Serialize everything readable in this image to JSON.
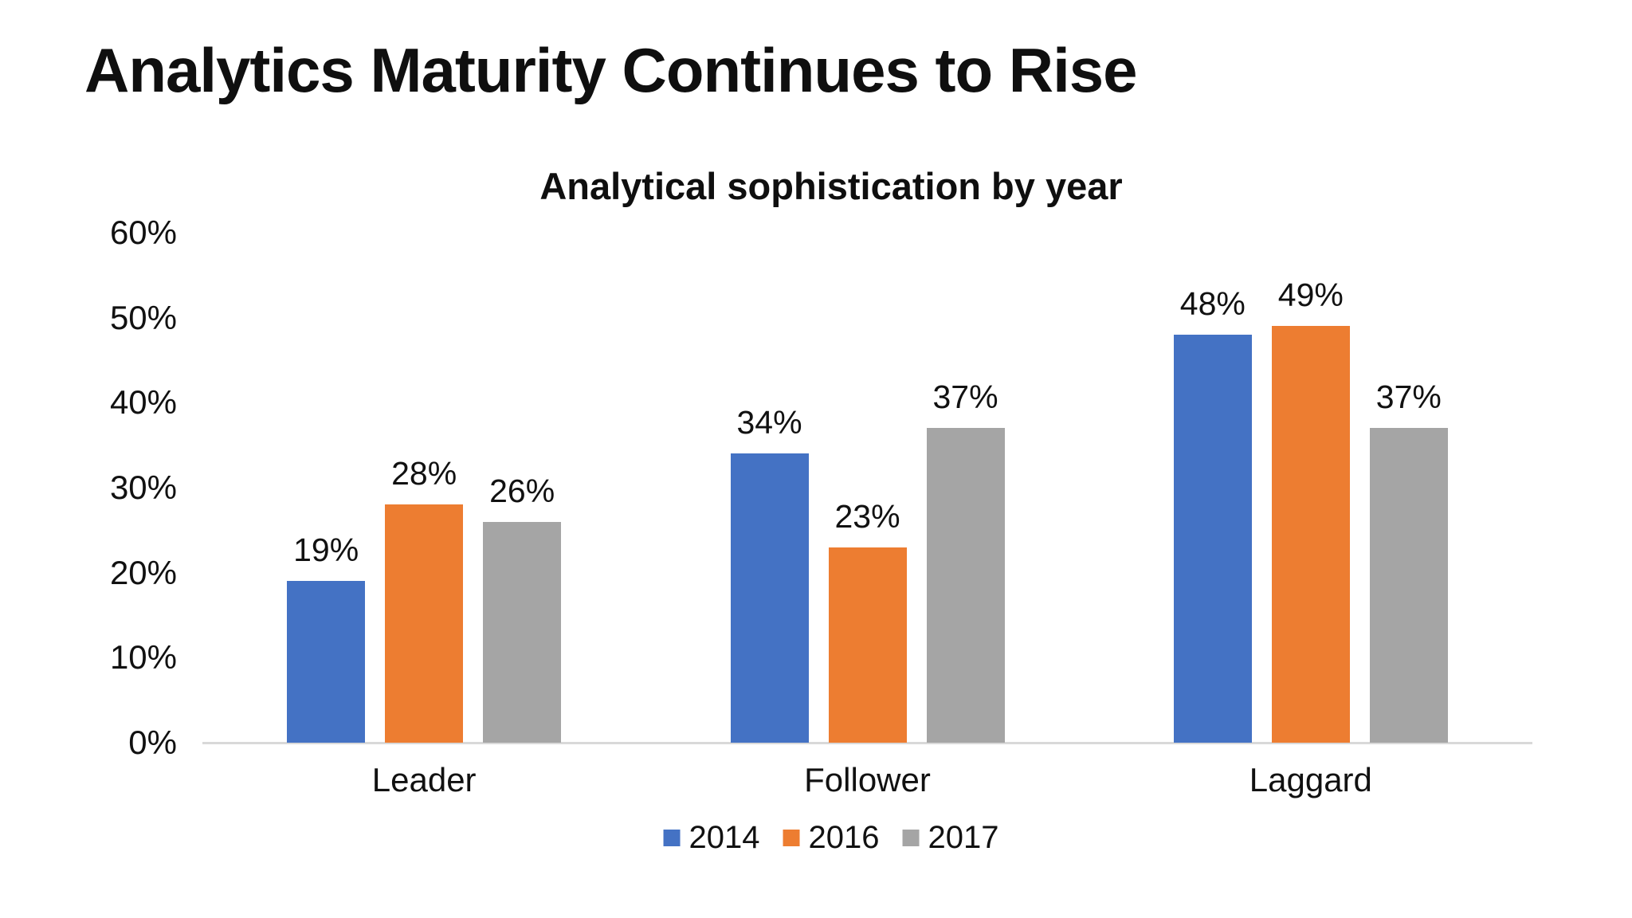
{
  "page": {
    "background": "#ffffff",
    "text_color": "#111111"
  },
  "title": "Analytics Maturity Continues to Rise",
  "chart_data": {
    "type": "bar",
    "title": "Analytical sophistication by year",
    "categories": [
      "Leader",
      "Follower",
      "Laggard"
    ],
    "series": [
      {
        "name": "2014",
        "color": "#4472c4",
        "values": [
          19,
          34,
          48
        ]
      },
      {
        "name": "2016",
        "color": "#ed7d31",
        "values": [
          28,
          23,
          49
        ]
      },
      {
        "name": "2017",
        "color": "#a5a5a5",
        "values": [
          26,
          37,
          37
        ]
      }
    ],
    "value_suffix": "%",
    "data_labels_shown": true,
    "y_axis": {
      "min": 0,
      "max": 60,
      "step": 10,
      "tick_labels": [
        "0%",
        "10%",
        "20%",
        "30%",
        "40%",
        "50%",
        "60%"
      ]
    },
    "grid": false,
    "axis_line_color": "#d9d9d9",
    "legend": {
      "position": "bottom",
      "entries": [
        "2014",
        "2016",
        "2017"
      ]
    }
  }
}
